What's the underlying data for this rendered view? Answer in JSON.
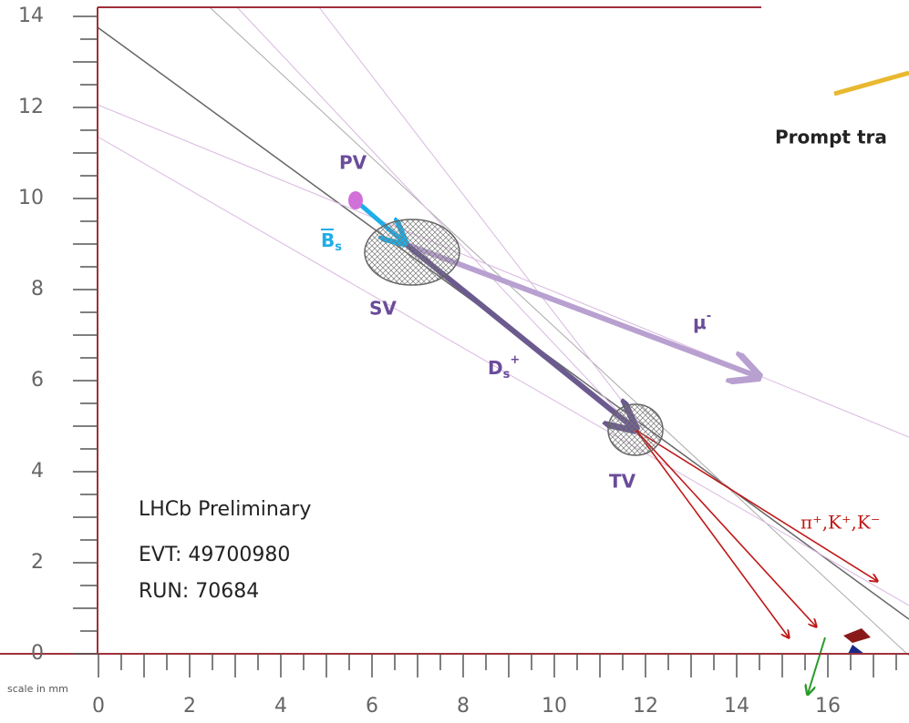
{
  "axes": {
    "yticks": [
      0,
      2,
      4,
      6,
      8,
      10,
      12,
      14
    ],
    "xticks": [
      0,
      2,
      4,
      6,
      8,
      10,
      12,
      14,
      16
    ],
    "scale_label": "scale in mm"
  },
  "labels": {
    "pv": "PV",
    "bs": {
      "base": "B",
      "sub": "s"
    },
    "sv": "SV",
    "mu": {
      "base": "μ",
      "sup": "-"
    },
    "ds": {
      "base": "D",
      "sub": "s",
      "sup": "+"
    },
    "tv": "TV",
    "daughters": "π⁺,K⁺,K⁻",
    "prompt": "Prompt tra"
  },
  "info": {
    "collab": "LHCb Preliminary",
    "event": "EVT: 49700980",
    "run": "RUN: 70684"
  }
}
